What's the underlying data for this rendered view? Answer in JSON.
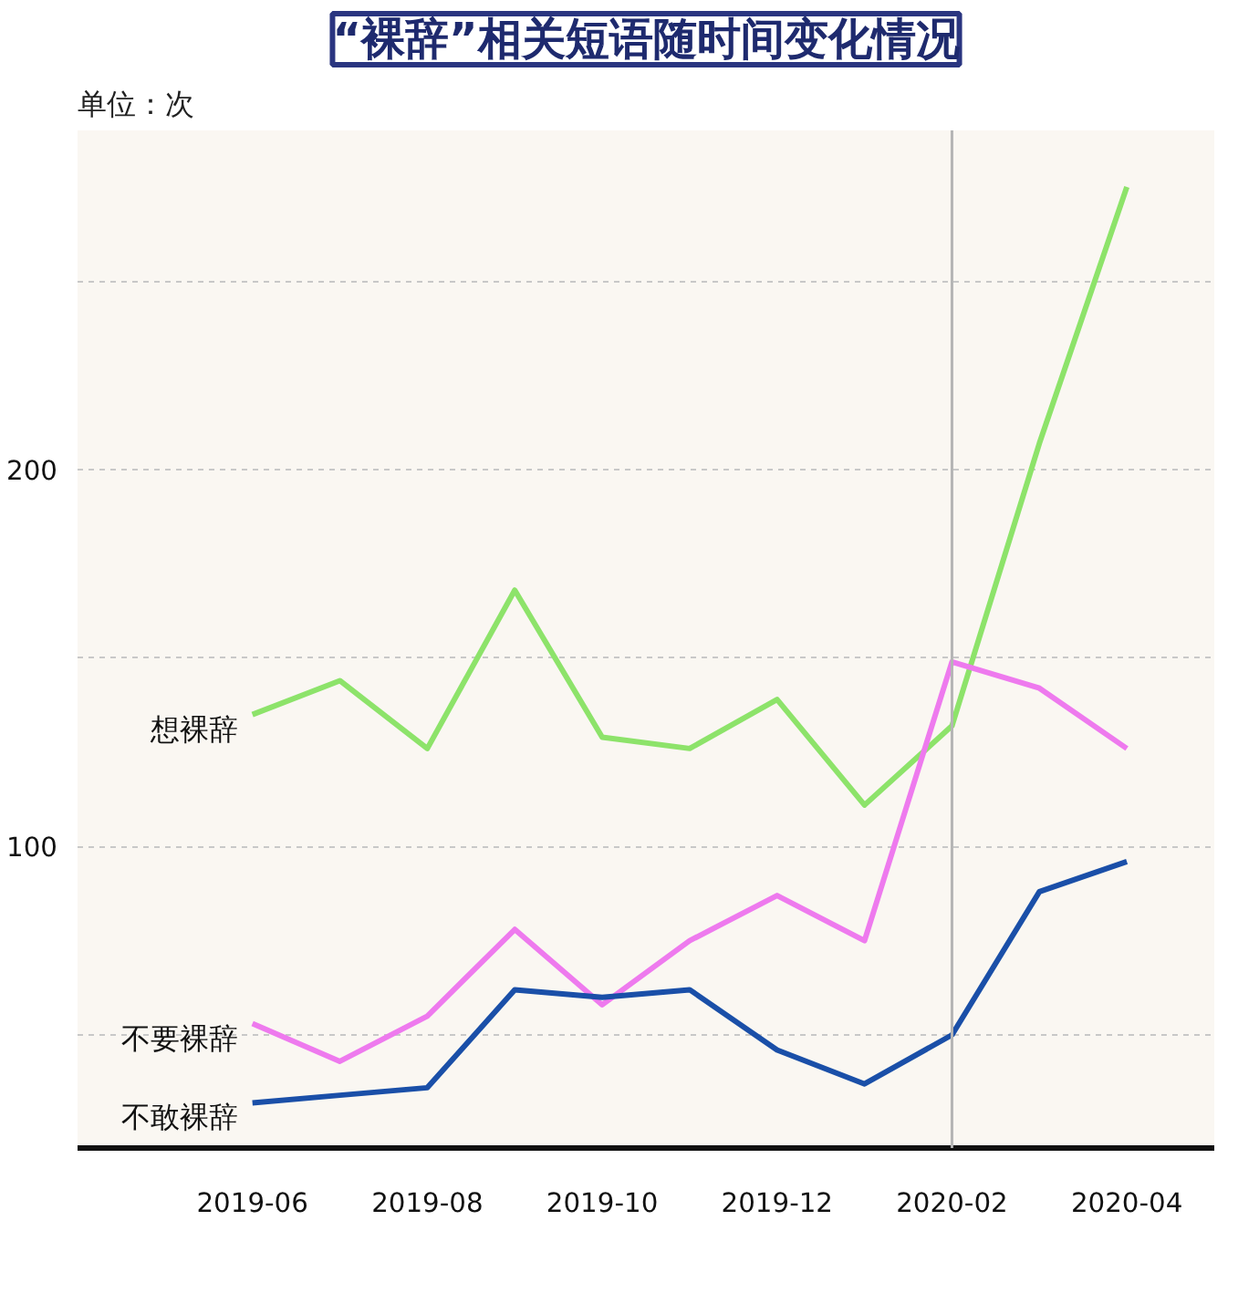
{
  "chart_data": {
    "type": "line",
    "title": "“裸辞”相关短语随时间变化情况",
    "annotations": [
      "单位：次"
    ],
    "x": [
      "2019-06",
      "2019-07",
      "2019-08",
      "2019-09",
      "2019-10",
      "2019-11",
      "2019-12",
      "2020-01",
      "2020-02",
      "2020-03",
      "2020-04"
    ],
    "series": [
      {
        "name": "想裸辞",
        "color": "#8de36a",
        "values": [
          135,
          144,
          126,
          168,
          129,
          126,
          139,
          111,
          132,
          207,
          275
        ]
      },
      {
        "name": "不要裸辞",
        "color": "#ee7aee",
        "values": [
          53,
          43,
          55,
          78,
          58,
          75,
          87,
          75,
          149,
          142,
          126
        ]
      },
      {
        "name": "不敢裸辞",
        "color": "#1a4fa8",
        "values": [
          32,
          34,
          36,
          62,
          60,
          62,
          46,
          37,
          50,
          88,
          96
        ]
      }
    ],
    "xlim": [
      "2019-04",
      "2020-05"
    ],
    "xticks": [
      "2019-06",
      "2019-08",
      "2019-10",
      "2019-12",
      "2020-02",
      "2020-04"
    ],
    "ylim": [
      20,
      290
    ],
    "yticks": [
      {
        "value": 50,
        "label": null
      },
      100,
      {
        "value": 150,
        "label": null
      },
      200,
      {
        "value": 250,
        "label": null
      }
    ],
    "grid": "y",
    "marker": "none",
    "line_style": "solid",
    "ref_lines": [
      {
        "axis": "x",
        "value": "2020-02",
        "color": "#b5b5b5"
      }
    ]
  }
}
